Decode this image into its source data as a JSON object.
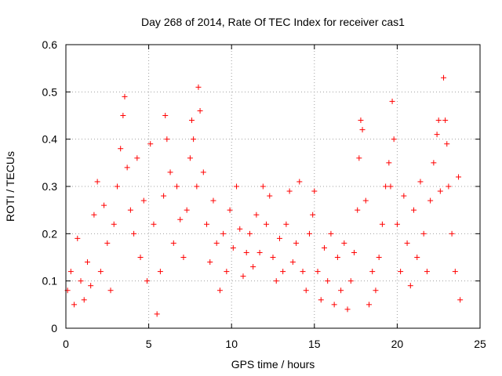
{
  "chart_data": {
    "type": "scatter",
    "title": "Day 268 of 2014, Rate Of TEC Index for receiver cas1",
    "xlabel": "GPS time / hours",
    "ylabel": "ROTI / TECUs",
    "xlim": [
      0,
      25
    ],
    "ylim": [
      0,
      0.6
    ],
    "x_ticks": [
      0,
      5,
      10,
      15,
      20,
      25
    ],
    "x_tick_labels": [
      "0",
      "5",
      "10",
      "15",
      "20",
      "25"
    ],
    "y_ticks": [
      0,
      0.1,
      0.2,
      0.3,
      0.4,
      0.5,
      0.6
    ],
    "y_tick_labels": [
      "0",
      "0.1",
      "0.2",
      "0.3",
      "0.4",
      "0.5",
      "0.6"
    ],
    "grid": true,
    "marker": "plus",
    "color": "#ff0000",
    "series": [
      {
        "name": "ROTI",
        "points": [
          [
            0.1,
            0.08
          ],
          [
            0.3,
            0.12
          ],
          [
            0.5,
            0.05
          ],
          [
            0.7,
            0.19
          ],
          [
            0.9,
            0.1
          ],
          [
            1.1,
            0.06
          ],
          [
            1.3,
            0.14
          ],
          [
            1.5,
            0.09
          ],
          [
            1.7,
            0.24
          ],
          [
            1.9,
            0.31
          ],
          [
            2.1,
            0.12
          ],
          [
            2.3,
            0.26
          ],
          [
            2.5,
            0.18
          ],
          [
            2.7,
            0.08
          ],
          [
            2.9,
            0.22
          ],
          [
            3.1,
            0.3
          ],
          [
            3.3,
            0.38
          ],
          [
            3.45,
            0.45
          ],
          [
            3.55,
            0.49
          ],
          [
            3.7,
            0.34
          ],
          [
            3.9,
            0.25
          ],
          [
            4.1,
            0.2
          ],
          [
            4.3,
            0.36
          ],
          [
            4.5,
            0.15
          ],
          [
            4.7,
            0.27
          ],
          [
            4.9,
            0.1
          ],
          [
            5.1,
            0.39
          ],
          [
            5.3,
            0.22
          ],
          [
            5.5,
            0.03
          ],
          [
            5.7,
            0.12
          ],
          [
            5.9,
            0.28
          ],
          [
            6.0,
            0.45
          ],
          [
            6.1,
            0.4
          ],
          [
            6.3,
            0.33
          ],
          [
            6.5,
            0.18
          ],
          [
            6.7,
            0.3
          ],
          [
            6.9,
            0.23
          ],
          [
            7.1,
            0.15
          ],
          [
            7.3,
            0.25
          ],
          [
            7.5,
            0.36
          ],
          [
            7.6,
            0.44
          ],
          [
            7.7,
            0.4
          ],
          [
            7.9,
            0.3
          ],
          [
            8.0,
            0.51
          ],
          [
            8.1,
            0.46
          ],
          [
            8.3,
            0.33
          ],
          [
            8.5,
            0.22
          ],
          [
            8.7,
            0.14
          ],
          [
            8.9,
            0.27
          ],
          [
            9.1,
            0.18
          ],
          [
            9.3,
            0.08
          ],
          [
            9.5,
            0.2
          ],
          [
            9.7,
            0.12
          ],
          [
            9.9,
            0.25
          ],
          [
            10.1,
            0.17
          ],
          [
            10.3,
            0.3
          ],
          [
            10.5,
            0.21
          ],
          [
            10.7,
            0.11
          ],
          [
            10.9,
            0.16
          ],
          [
            11.1,
            0.2
          ],
          [
            11.3,
            0.13
          ],
          [
            11.5,
            0.24
          ],
          [
            11.7,
            0.16
          ],
          [
            11.9,
            0.3
          ],
          [
            12.1,
            0.22
          ],
          [
            12.3,
            0.28
          ],
          [
            12.5,
            0.15
          ],
          [
            12.7,
            0.1
          ],
          [
            12.9,
            0.19
          ],
          [
            13.1,
            0.12
          ],
          [
            13.3,
            0.22
          ],
          [
            13.5,
            0.29
          ],
          [
            13.7,
            0.14
          ],
          [
            13.9,
            0.18
          ],
          [
            14.1,
            0.31
          ],
          [
            14.3,
            0.12
          ],
          [
            14.5,
            0.08
          ],
          [
            14.7,
            0.2
          ],
          [
            14.9,
            0.24
          ],
          [
            15.0,
            0.29
          ],
          [
            15.2,
            0.12
          ],
          [
            15.4,
            0.06
          ],
          [
            15.6,
            0.17
          ],
          [
            15.8,
            0.1
          ],
          [
            16.0,
            0.2
          ],
          [
            16.2,
            0.05
          ],
          [
            16.4,
            0.15
          ],
          [
            16.6,
            0.08
          ],
          [
            16.8,
            0.18
          ],
          [
            17.0,
            0.04
          ],
          [
            17.2,
            0.1
          ],
          [
            17.4,
            0.16
          ],
          [
            17.6,
            0.25
          ],
          [
            17.7,
            0.36
          ],
          [
            17.8,
            0.44
          ],
          [
            17.9,
            0.42
          ],
          [
            18.1,
            0.27
          ],
          [
            18.3,
            0.05
          ],
          [
            18.5,
            0.12
          ],
          [
            18.7,
            0.08
          ],
          [
            18.9,
            0.15
          ],
          [
            19.1,
            0.22
          ],
          [
            19.3,
            0.3
          ],
          [
            19.5,
            0.35
          ],
          [
            19.6,
            0.3
          ],
          [
            19.7,
            0.48
          ],
          [
            19.8,
            0.4
          ],
          [
            20.0,
            0.22
          ],
          [
            20.2,
            0.12
          ],
          [
            20.4,
            0.28
          ],
          [
            20.6,
            0.18
          ],
          [
            20.8,
            0.09
          ],
          [
            21.0,
            0.25
          ],
          [
            21.2,
            0.15
          ],
          [
            21.4,
            0.31
          ],
          [
            21.6,
            0.2
          ],
          [
            21.8,
            0.12
          ],
          [
            22.0,
            0.27
          ],
          [
            22.2,
            0.35
          ],
          [
            22.4,
            0.41
          ],
          [
            22.5,
            0.44
          ],
          [
            22.6,
            0.29
          ],
          [
            22.8,
            0.53
          ],
          [
            22.9,
            0.44
          ],
          [
            23.0,
            0.39
          ],
          [
            23.1,
            0.3
          ],
          [
            23.3,
            0.2
          ],
          [
            23.5,
            0.12
          ],
          [
            23.7,
            0.32
          ],
          [
            23.8,
            0.06
          ]
        ]
      }
    ]
  }
}
